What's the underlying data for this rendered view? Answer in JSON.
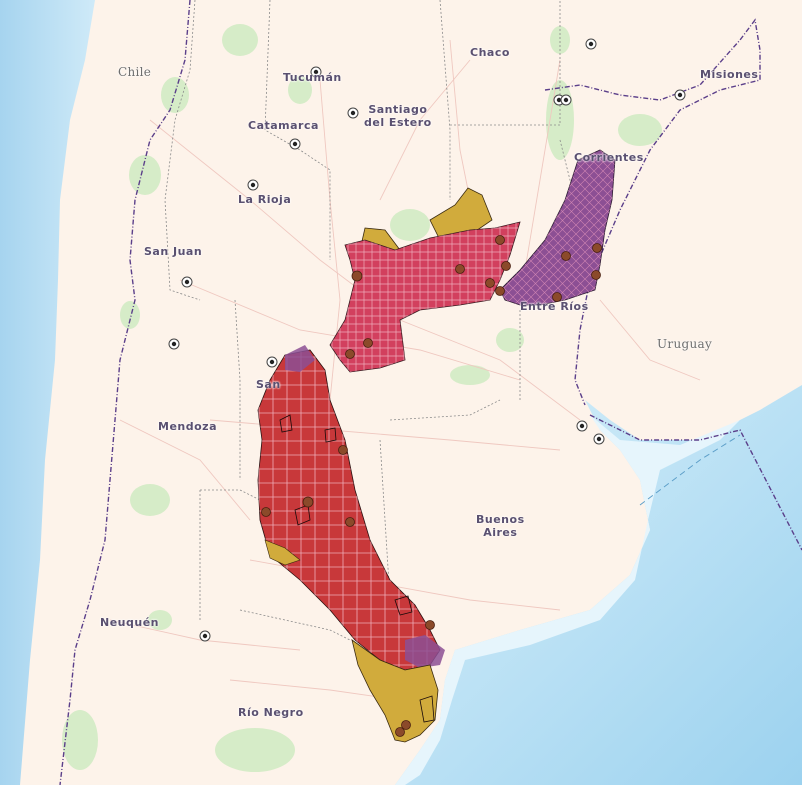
{
  "map": {
    "countries": [
      {
        "id": "chile",
        "label": "Chile"
      },
      {
        "id": "uruguay",
        "label": "Uruguay"
      }
    ],
    "provinces": [
      {
        "id": "chaco",
        "label": "Chaco"
      },
      {
        "id": "tucuman",
        "label": "Tucumán"
      },
      {
        "id": "santiago",
        "label": "Santiago\ndel Estero"
      },
      {
        "id": "catamarca",
        "label": "Catamarca"
      },
      {
        "id": "misiones",
        "label": "Misiones"
      },
      {
        "id": "corrientes",
        "label": "Corrientes"
      },
      {
        "id": "larioja",
        "label": "La Rioja"
      },
      {
        "id": "sanjuan",
        "label": "San Juan"
      },
      {
        "id": "entrerios",
        "label": "Entre Ríos"
      },
      {
        "id": "sanluis",
        "label": "San"
      },
      {
        "id": "mendoza",
        "label": "Mendoza"
      },
      {
        "id": "buenosaires",
        "label": "Buenos\nAires"
      },
      {
        "id": "neuquen",
        "label": "Neuquén"
      },
      {
        "id": "rionegro",
        "label": "Río Negro"
      }
    ],
    "colors": {
      "land": "#fdf3ea",
      "sea_deep": "#a9d8f0",
      "sea_shallow": "#e4f4fb",
      "parks": "#d6ecc8",
      "crop_red": "#c8383a",
      "crop_purple": "#8c4f94",
      "crop_gold": "#d1ab3c",
      "crop_pink": "#d2405e",
      "marker": "#8b4a2a",
      "border": "#5b3f8a"
    },
    "legend_categories": [
      "red",
      "purple",
      "gold",
      "pink"
    ]
  }
}
